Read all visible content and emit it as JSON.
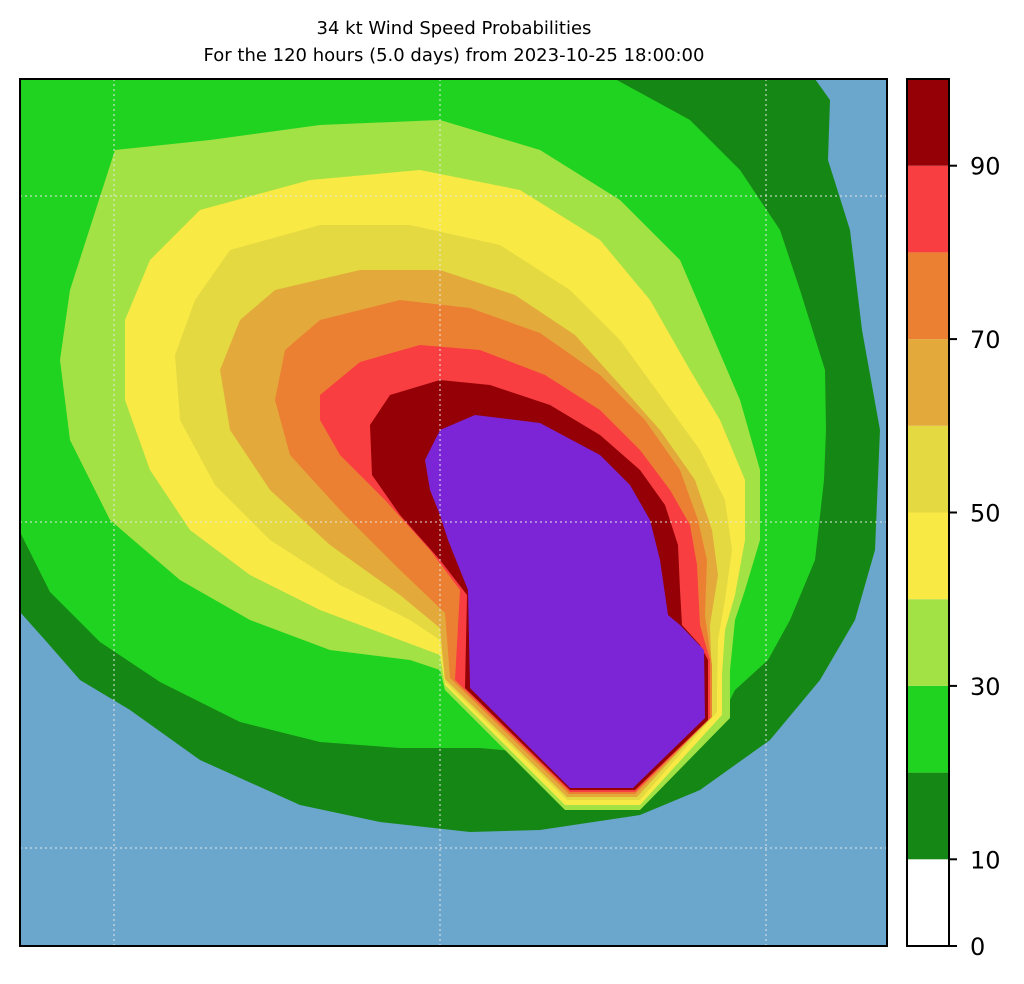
{
  "title": {
    "line1": "34 kt Wind Speed Probabilities",
    "line2": "For the 120 hours (5.0 days) from 2023-10-25 18:00:00"
  },
  "colorbar": {
    "levels": [
      0,
      10,
      20,
      30,
      40,
      50,
      60,
      70,
      80,
      90,
      100
    ],
    "colors": [
      "#ffffff",
      "#158715",
      "#21d321",
      "#a3e245",
      "#f8e945",
      "#e4d941",
      "#e3aa3b",
      "#ec8032",
      "#f83e41",
      "#940005",
      "#7c25d7"
    ],
    "tick_labels": [
      "0",
      "10",
      "30",
      "50",
      "70",
      "90"
    ],
    "tick_values": [
      0,
      10,
      30,
      50,
      70,
      90
    ]
  },
  "map": {
    "ocean_color": "#6ba6cc",
    "gridlines": "dotted",
    "contour_colors": [
      "#158715",
      "#21d321",
      "#a3e245",
      "#f8e945",
      "#e4d941",
      "#e3aa3b",
      "#ec8032",
      "#f83e41",
      "#940005",
      "#7c25d7"
    ]
  }
}
